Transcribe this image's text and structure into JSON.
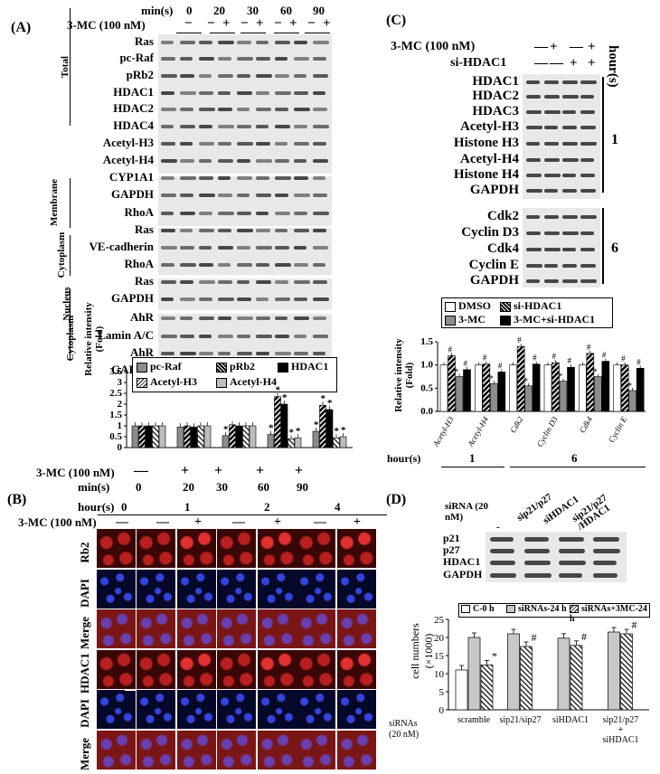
{
  "panelA": {
    "letter": "(A)",
    "time_label": "min(s)",
    "times": [
      "0",
      "20",
      "30",
      "60",
      "90"
    ],
    "treat_label": "3-MC (100 nM)",
    "treat_signs": [
      "−",
      "−",
      "+",
      "−",
      "+",
      "−",
      "+",
      "−",
      "+"
    ],
    "blot_labels": [
      "Ras",
      "pc-Raf",
      "pRb2",
      "HDAC1",
      "HDAC2",
      "HDAC4",
      "Acetyl-H3",
      "Acetyl-H4",
      "CYP1A1",
      "GAPDH",
      "RhoA",
      "Ras",
      "VE-cadherin",
      "RhoA",
      "Ras",
      "GAPDH",
      "AhR",
      "Lamin A/C",
      "AhR",
      "GAPDH"
    ],
    "section_labels": [
      "Total",
      "Membrane",
      "Cytoplasm",
      "Nucleus",
      "Cytoplasm"
    ],
    "legend": [
      "pc-Raf",
      "pRb2",
      "HDAC1",
      "Acetyl-H3",
      "Acetyl-H4"
    ],
    "x_treat_label": "3-MC (100 nM)",
    "x_min_label": "min(s)",
    "x_treat_marks": [
      "—",
      "+",
      "+",
      "+",
      "+"
    ],
    "x_min_values": [
      "0",
      "20",
      "30",
      "60",
      "90"
    ]
  },
  "panelB": {
    "letter": "(B)",
    "hour_label": "hour(s)",
    "hours": [
      "0",
      "1",
      "2",
      "4"
    ],
    "treat_label": "3-MC (100 nM)",
    "treat_signs": [
      "—",
      "—",
      "+",
      "—",
      "+",
      "—",
      "+"
    ],
    "row_labels": [
      "Rb2",
      "DAPI",
      "Merge",
      "HDAC1",
      "DAPI",
      "Merge"
    ]
  },
  "panelC": {
    "letter": "(C)",
    "treat_label": "3-MC (100 nM)",
    "treat_signs": [
      "—",
      "+",
      "—",
      "+"
    ],
    "si_label": "si-HDAC1",
    "si_signs": [
      "—",
      "—",
      "+",
      "+"
    ],
    "hours_axis": "hour(s)",
    "blot_labels_1h": [
      "HDAC1",
      "HDAC2",
      "HDAC3",
      "Acetyl-H3",
      "Histone H3",
      "Acetyl-H4",
      "Histone H4",
      "GAPDH"
    ],
    "blot_labels_6h": [
      "Cdk2",
      "Cyclin D3",
      "Cdk4",
      "Cyclin E",
      "GAPDH"
    ],
    "hour_1": "1",
    "hour_6": "6",
    "legend": [
      "DMSO",
      "si-HDAC1",
      "3-MC",
      "3-MC+si-HDAC1"
    ],
    "x_hour_label": "hour(s)",
    "x_hour_1": "1",
    "x_hour_6": "6"
  },
  "panelD": {
    "letter": "(D)",
    "sirna_header": "siRNA (20 nM)",
    "lane_labels": [
      "-",
      "sip21/p27",
      "siHDAC1",
      "sip21/p27 /HDAC1"
    ],
    "blot_labels": [
      "p21",
      "p27",
      "HDAC1",
      "GAPDH"
    ],
    "legend": [
      "C-0 h",
      "siRNAs-24 h",
      "siRNAs+3MC-24 h"
    ],
    "x_title": "siRNAs (20 nM)"
  },
  "colors": {
    "black": "#000000",
    "gray": "#8c8c8c",
    "light_gray": "#c8c8c8",
    "white": "#ffffff",
    "micro_red": "#b01818",
    "micro_blue": "#1a2aa8"
  },
  "chart_data": [
    {
      "type": "bar",
      "panel": "A",
      "ylabel": "Relative intensity (Fold)",
      "ylim": [
        0,
        3.5
      ],
      "yticks": [
        "0",
        "0.5",
        "1",
        "1.5",
        "2",
        "2.5",
        "3",
        "3.5"
      ],
      "categories": [
        "0",
        "20",
        "30",
        "60",
        "90"
      ],
      "series": [
        {
          "name": "pc-Raf",
          "values": [
            1.0,
            0.95,
            0.55,
            0.6,
            0.75
          ]
        },
        {
          "name": "pRb2",
          "values": [
            1.0,
            1.0,
            1.05,
            2.35,
            1.95
          ]
        },
        {
          "name": "HDAC1",
          "values": [
            1.0,
            0.95,
            1.0,
            2.0,
            1.75
          ]
        },
        {
          "name": "Acetyl-H3",
          "values": [
            1.0,
            1.0,
            1.0,
            0.4,
            0.45
          ]
        },
        {
          "name": "Acetyl-H4",
          "values": [
            1.0,
            1.0,
            1.0,
            0.45,
            0.5
          ]
        }
      ],
      "annotations": [
        "*"
      ]
    },
    {
      "type": "bar",
      "panel": "C",
      "ylabel": "Relative intensity (Fold)",
      "ylim": [
        0,
        1.5
      ],
      "yticks": [
        "0.0",
        "0.5",
        "1.0",
        "1.5"
      ],
      "categories": [
        "Acetyl-H3",
        "Acetyl-H4",
        "Cdk2",
        "Cyclin D3",
        "Cdk4",
        "Cyclin E"
      ],
      "series": [
        {
          "name": "DMSO",
          "values": [
            1.0,
            1.0,
            1.0,
            1.0,
            1.0,
            1.0
          ]
        },
        {
          "name": "si-HDAC1",
          "values": [
            1.2,
            1.02,
            1.4,
            1.05,
            1.25,
            1.0
          ]
        },
        {
          "name": "3-MC",
          "values": [
            0.75,
            0.6,
            0.55,
            0.65,
            0.75,
            0.45
          ]
        },
        {
          "name": "3-MC+si-HDAC1",
          "values": [
            0.9,
            0.85,
            1.02,
            0.95,
            1.08,
            0.93
          ]
        }
      ],
      "annotations": [
        "*",
        "#"
      ]
    },
    {
      "type": "bar",
      "panel": "D",
      "ylabel": "cell numbers (×1000)",
      "ylim": [
        0,
        25
      ],
      "yticks": [
        "0",
        "5",
        "10",
        "15",
        "20",
        "25"
      ],
      "categories": [
        "scramble",
        "sip21/sip27",
        "siHDAC1",
        "sip21/p27 + siHDAC1"
      ],
      "series": [
        {
          "name": "C-0 h",
          "values": [
            11,
            null,
            null,
            null
          ]
        },
        {
          "name": "siRNAs-24 h",
          "values": [
            20,
            21,
            19.8,
            21.5
          ]
        },
        {
          "name": "siRNAs+3MC-24 h",
          "values": [
            12.4,
            17.5,
            17.8,
            21
          ]
        }
      ],
      "annotations": [
        "*",
        "#"
      ]
    }
  ]
}
